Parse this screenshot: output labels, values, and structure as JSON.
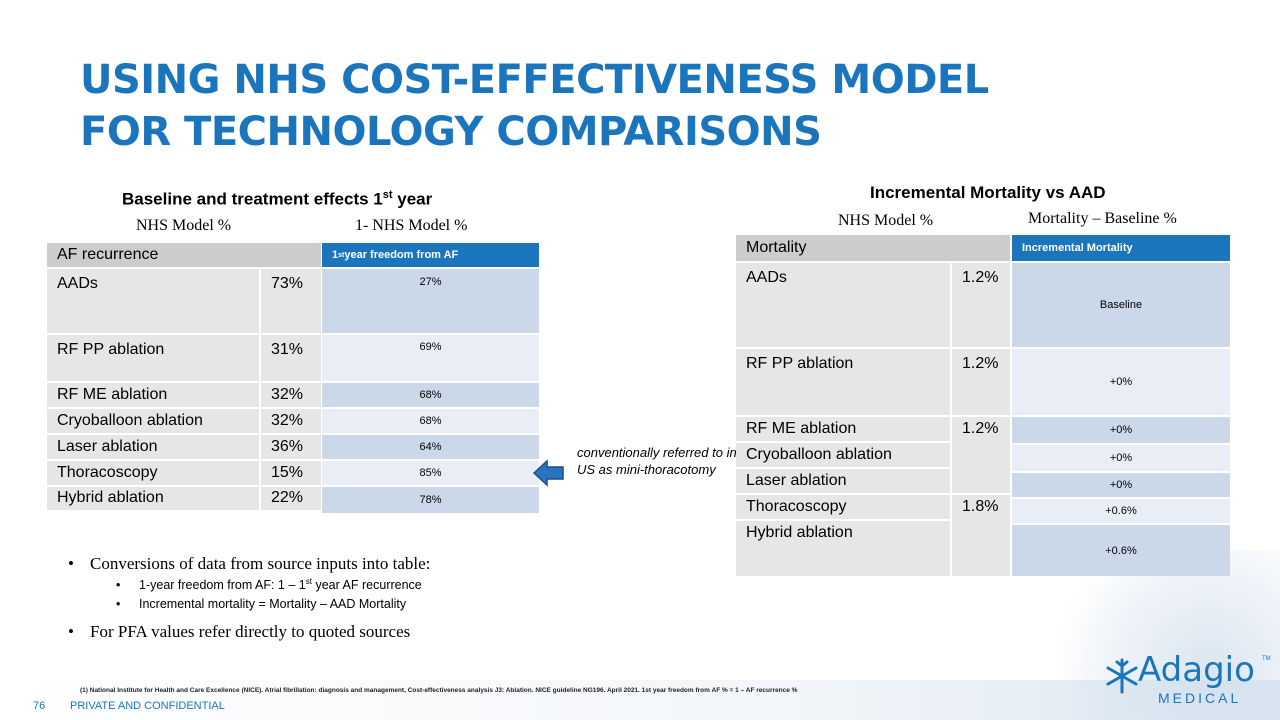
{
  "title": "USING NHS COST-EFFECTIVENESS MODEL FOR TECHNOLOGY COMPARISONS",
  "left": {
    "heading": "Baseline and treatment effects 1st year",
    "heading_main": "Baseline and treatment effects 1",
    "heading_sup": "st",
    "heading_end": " year",
    "col1": "NHS Model %",
    "col2": "1- NHS Model %",
    "table_header": "AF recurrence",
    "blue_header": "1st year freedom from AF",
    "blue_header_main": "1",
    "blue_header_sup": "st",
    "blue_header_end": " year freedom from AF",
    "rows": [
      {
        "label": "AADs",
        "value": "73%",
        "freedom": "27%"
      },
      {
        "label": "RF PP ablation",
        "value": "31%",
        "freedom": "69%"
      },
      {
        "label": "RF ME ablation",
        "value": "32%",
        "freedom": "68%"
      },
      {
        "label": "Cryoballoon ablation",
        "value": "32%",
        "freedom": "68%"
      },
      {
        "label": "Laser ablation",
        "value": "36%",
        "freedom": "64%"
      },
      {
        "label": "Thoracoscopy",
        "value": "15%",
        "freedom": "85%"
      },
      {
        "label": "Hybrid ablation",
        "value": "22%",
        "freedom": "78%"
      }
    ]
  },
  "note": "conventionally referred to in US as mini-thoracotomy",
  "right": {
    "heading": "Incremental Mortality vs AAD",
    "col1": "NHS Model %",
    "col2": "Mortality – Baseline %",
    "table_header": "Mortality",
    "blue_header": "Incremental Mortality",
    "labels": [
      "AADs",
      "RF PP ablation",
      "RF ME ablation",
      "Cryoballoon ablation",
      "Laser ablation",
      "Thoracoscopy",
      "Hybrid ablation"
    ],
    "values": [
      "1.2%",
      "1.2%",
      "1.2%",
      "1.8%"
    ],
    "incremental": [
      "Baseline",
      "+0%",
      "+0%",
      "+0%",
      "+0%",
      "+0.6%",
      "+0.6%"
    ]
  },
  "bullets": {
    "b1": "Conversions of data from source inputs into table:",
    "b1a": "1-year freedom from AF: 1 – 1st year AF recurrence",
    "b1a_pre": "1-year freedom from AF: 1 – 1",
    "b1a_sup": "st",
    "b1a_end": " year AF recurrence",
    "b1b": "Incremental mortality = Mortality – AAD Mortality",
    "b2": "For PFA values refer directly to quoted sources"
  },
  "footnote": "(1) National Institute for Health and Care Excellence (NICE). Atrial fibrillation: diagnosis and management, Cost-effectiveness analysis J3: Ablation. NICE guideline NG196. April 2021. 1st year freedom from AF % = 1 – AF recurrence %",
  "footer": {
    "page": "76",
    "label": "PRIVATE AND CONFIDENTIAL"
  },
  "logo": {
    "name": "Adagio",
    "tm": "TM",
    "sub": "MEDICAL"
  },
  "colors": {
    "accent": "#1a75bc",
    "gray_cell": "#e6e6e6",
    "blue_cell": "#cad8ea"
  }
}
